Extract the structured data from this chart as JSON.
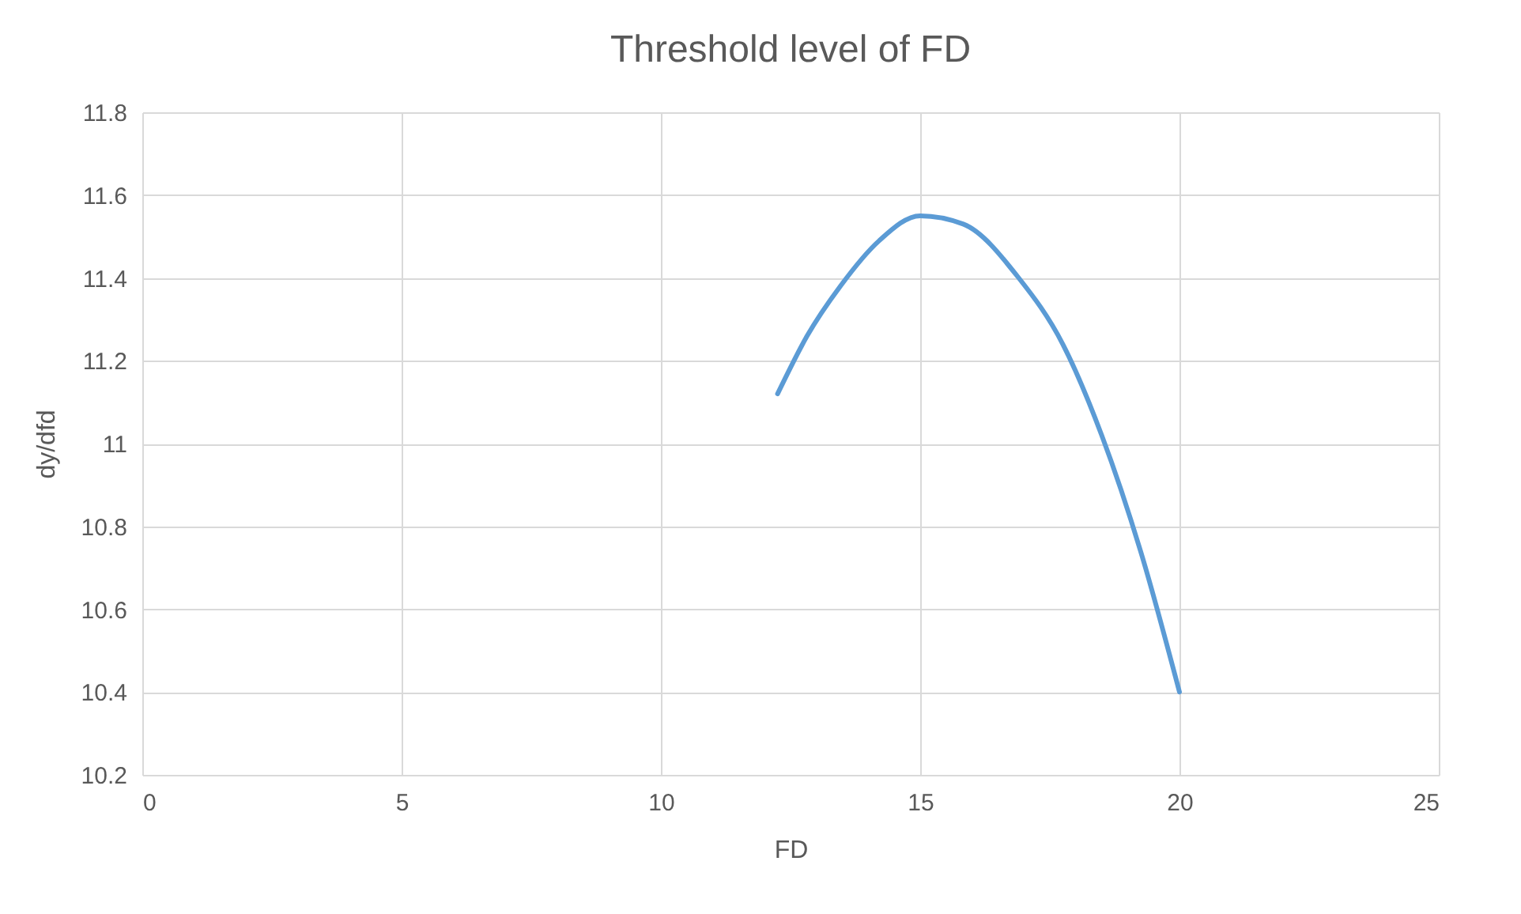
{
  "chart_data": {
    "type": "line",
    "title": "Threshold level of FD",
    "xlabel": "FD",
    "ylabel": "dy/dfd",
    "series": [
      {
        "color": "#5b9bd5",
        "x": [
          12.25,
          12.82,
          13.46,
          14.21,
          15.0,
          15.83,
          16.9,
          17.75,
          18.5,
          19.25,
          20.0
        ],
        "values": [
          11.12,
          11.26,
          11.38,
          11.49,
          11.55,
          11.53,
          11.4,
          11.24,
          11.02,
          10.74,
          10.4
        ]
      }
    ],
    "xlim": [
      0,
      25
    ],
    "xticks": [
      0,
      5,
      10,
      15,
      20,
      25
    ],
    "ylim": [
      10.2,
      11.8
    ],
    "yticks": [
      10.2,
      10.4,
      10.6,
      10.8,
      11,
      11.2,
      11.4,
      11.6,
      11.8
    ],
    "grid": true,
    "marker": "none",
    "line_style": "solid"
  }
}
